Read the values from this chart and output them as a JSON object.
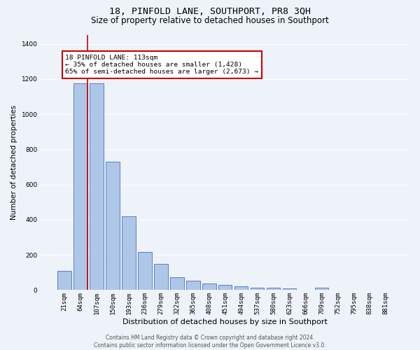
{
  "title": "18, PINFOLD LANE, SOUTHPORT, PR8 3QH",
  "subtitle": "Size of property relative to detached houses in Southport",
  "xlabel": "Distribution of detached houses by size in Southport",
  "ylabel": "Number of detached properties",
  "categories": [
    "21sqm",
    "64sqm",
    "107sqm",
    "150sqm",
    "193sqm",
    "236sqm",
    "279sqm",
    "322sqm",
    "365sqm",
    "408sqm",
    "451sqm",
    "494sqm",
    "537sqm",
    "580sqm",
    "623sqm",
    "666sqm",
    "709sqm",
    "752sqm",
    "795sqm",
    "838sqm",
    "881sqm"
  ],
  "values": [
    108,
    1175,
    1175,
    730,
    420,
    218,
    148,
    72,
    52,
    38,
    28,
    22,
    15,
    12,
    10,
    0,
    12,
    0,
    0,
    0,
    0
  ],
  "bar_color": "#aec6e8",
  "bar_edge_color": "#4472c4",
  "property_line_color": "#cc0000",
  "annotation_text": "18 PINFOLD LANE: 113sqm\n← 35% of detached houses are smaller (1,428)\n65% of semi-detached houses are larger (2,673) →",
  "annotation_box_color": "#ffffff",
  "annotation_box_edge_color": "#cc0000",
  "footer_line1": "Contains HM Land Registry data © Crown copyright and database right 2024.",
  "footer_line2": "Contains public sector information licensed under the Open Government Licence v3.0.",
  "ylim": [
    0,
    1450
  ],
  "background_color": "#eef2f9",
  "plot_background": "#eef2f9",
  "grid_color": "#ffffff",
  "title_fontsize": 9.5,
  "subtitle_fontsize": 8.5,
  "axis_label_fontsize": 8,
  "tick_fontsize": 6.5,
  "ylabel_fontsize": 7.5
}
